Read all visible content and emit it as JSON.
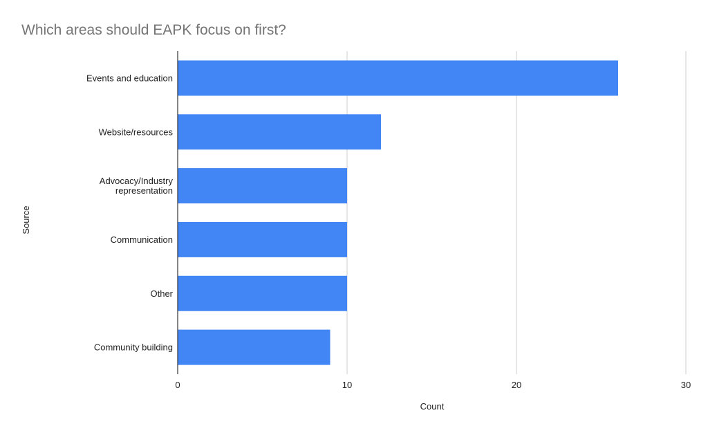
{
  "chart_data": {
    "type": "bar",
    "orientation": "horizontal",
    "title": "Which areas should EAPK focus on first?",
    "xlabel": "Count",
    "ylabel": "Source",
    "categories": [
      [
        "Events and education"
      ],
      [
        "Website/resources"
      ],
      [
        "Advocacy/Industry",
        "representation"
      ],
      [
        "Communication"
      ],
      [
        "Other"
      ],
      [
        "Community building"
      ]
    ],
    "values": [
      26,
      12,
      10,
      10,
      10,
      9
    ],
    "xlim": [
      0,
      30
    ],
    "xticks": [
      0,
      10,
      20,
      30
    ],
    "grid": true,
    "legend": "none",
    "bar_color": "#4285f4"
  }
}
